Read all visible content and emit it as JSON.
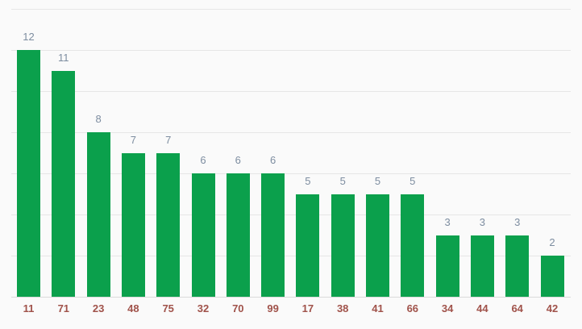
{
  "chart_data": {
    "type": "bar",
    "title": "",
    "xlabel": "",
    "ylabel": "",
    "categories": [
      "11",
      "71",
      "23",
      "48",
      "75",
      "32",
      "70",
      "99",
      "17",
      "38",
      "41",
      "66",
      "34",
      "44",
      "64",
      "42"
    ],
    "values": [
      12,
      11,
      8,
      7,
      7,
      6,
      6,
      6,
      5,
      5,
      5,
      5,
      3,
      3,
      3,
      2
    ],
    "value_labels": [
      "12",
      "11",
      "8",
      "7",
      "7",
      "6",
      "6",
      "6",
      "5",
      "5",
      "5",
      "5",
      "3",
      "3",
      "3",
      "2"
    ],
    "ylim": [
      0,
      14
    ],
    "gridline_step": 2,
    "grid": "on",
    "y_axis_labels": "none",
    "legend": "none",
    "colors": {
      "bar": "#0ba04c",
      "value_label": "#7d8da0",
      "category_label": "#a0524a",
      "gridline": "#e6e6e6",
      "axis_line": "#dadada",
      "background": "#fafafa"
    }
  }
}
